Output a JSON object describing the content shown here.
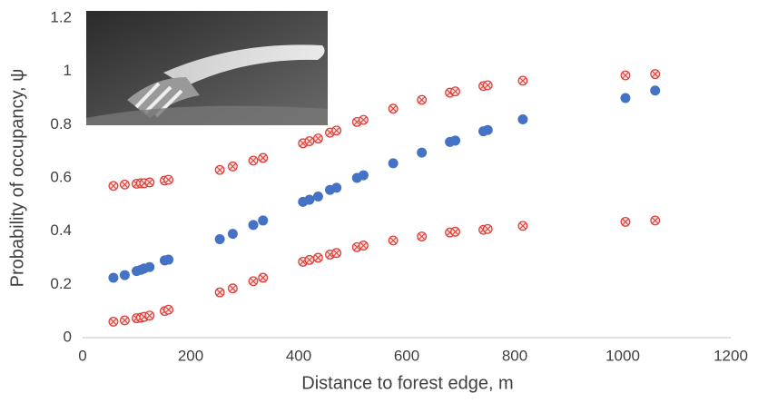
{
  "chart_data": {
    "type": "scatter",
    "x_label": "Distance to forest edge, m",
    "y_label": "Probability of occupancy, ψ",
    "x": [
      57,
      78,
      100,
      108,
      114,
      124,
      152,
      159,
      254,
      278,
      316,
      334,
      408,
      420,
      436,
      458,
      470,
      508,
      520,
      575,
      628,
      680,
      690,
      742,
      750,
      815,
      1005,
      1060
    ],
    "series": [
      {
        "color": "#4472c4",
        "marker": "dot",
        "values": [
          0.225,
          0.235,
          0.25,
          0.255,
          0.26,
          0.265,
          0.29,
          0.293,
          0.37,
          0.39,
          0.423,
          0.44,
          0.51,
          0.518,
          0.53,
          0.555,
          0.563,
          0.6,
          0.61,
          0.655,
          0.695,
          0.735,
          0.74,
          0.775,
          0.78,
          0.82,
          0.9,
          0.928
        ]
      },
      {
        "color": "#e0403a",
        "marker": "cross-circle",
        "values": [
          0.57,
          0.575,
          0.578,
          0.58,
          0.58,
          0.583,
          0.59,
          0.593,
          0.63,
          0.643,
          0.665,
          0.675,
          0.73,
          0.738,
          0.748,
          0.77,
          0.778,
          0.81,
          0.818,
          0.86,
          0.893,
          0.92,
          0.925,
          0.945,
          0.948,
          0.965,
          0.985,
          0.99
        ]
      },
      {
        "color": "#e0403a",
        "marker": "cross-circle",
        "values": [
          0.06,
          0.065,
          0.073,
          0.075,
          0.078,
          0.083,
          0.1,
          0.105,
          0.17,
          0.185,
          0.212,
          0.225,
          0.285,
          0.292,
          0.3,
          0.312,
          0.318,
          0.34,
          0.346,
          0.365,
          0.38,
          0.395,
          0.398,
          0.405,
          0.408,
          0.42,
          0.435,
          0.44
        ]
      }
    ],
    "xlim": [
      0,
      1200
    ],
    "xticks": [
      0,
      200,
      400,
      600,
      800,
      1000,
      1200
    ],
    "ylim": [
      0,
      1.2
    ],
    "yticks": [
      0,
      0.2,
      0.4,
      0.6,
      0.8,
      {
        "value": 1.0,
        "label": "1"
      },
      1.2
    ],
    "grid": false
  }
}
